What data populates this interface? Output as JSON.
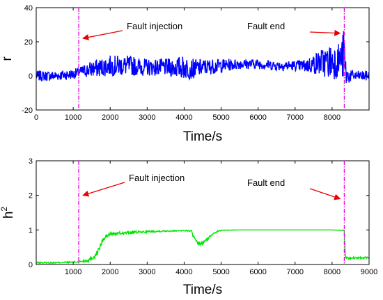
{
  "chart_data": [
    {
      "type": "line",
      "title": "",
      "xlabel": "Time/s",
      "ylabel": "r",
      "xlim": [
        0,
        9000
      ],
      "ylim": [
        -20,
        40
      ],
      "xticks": [
        0,
        1000,
        2000,
        3000,
        4000,
        5000,
        6000,
        7000,
        8000
      ],
      "yticks": [
        -20,
        0,
        20,
        40
      ],
      "grid": false,
      "series": [
        {
          "color": "#0000ff",
          "x": [
            0,
            500,
            1000,
            1150,
            1500,
            2000,
            2500,
            3000,
            3500,
            4000,
            4200,
            4500,
            5000,
            5500,
            6000,
            6500,
            7000,
            7300,
            7500,
            7700,
            7900,
            8100,
            8250,
            8330,
            8360,
            8400,
            8600,
            8800,
            9000
          ],
          "values": [
            0,
            0,
            1,
            2,
            4,
            6,
            6,
            5,
            5,
            5,
            4,
            5,
            6,
            7,
            7,
            6,
            6,
            6,
            7,
            8,
            8,
            9,
            10,
            12,
            2,
            0,
            0,
            0,
            0
          ],
          "amplitude": [
            3,
            3,
            3,
            3,
            5,
            6,
            6,
            5,
            5,
            7,
            6,
            5,
            4,
            3,
            3,
            3,
            3,
            4,
            6,
            8,
            10,
            11,
            10,
            18,
            12,
            5,
            3,
            3,
            3
          ]
        }
      ],
      "vlines": [
        {
          "x": 1150,
          "color": "#e600e6"
        },
        {
          "x": 8330,
          "color": "#e600e6"
        }
      ],
      "annotations": [
        {
          "text": "Fault injection",
          "arrow_to": [
            1150,
            22
          ],
          "color": "#e60000"
        },
        {
          "text": "Fault end",
          "arrow_to": [
            8330,
            25
          ],
          "color": "#e60000"
        }
      ]
    },
    {
      "type": "line",
      "title": "",
      "xlabel": "Time/s",
      "ylabel": "h",
      "ylabel_superscript": "2",
      "xlim": [
        0,
        9000
      ],
      "ylim": [
        0,
        3
      ],
      "xticks": [
        1000,
        2000,
        3000,
        4000,
        5000,
        6000,
        7000,
        8000,
        9000
      ],
      "yticks": [
        0,
        1,
        2,
        3
      ],
      "grid": false,
      "series": [
        {
          "color": "#00e600",
          "x": [
            0,
            500,
            1000,
            1150,
            1400,
            1600,
            1700,
            1800,
            1900,
            2000,
            2500,
            3000,
            3500,
            4000,
            4200,
            4250,
            4350,
            4500,
            4650,
            4800,
            5000,
            5500,
            6000,
            6500,
            7000,
            7500,
            8000,
            8300,
            8330,
            8360,
            8500,
            9000
          ],
          "values": [
            0.05,
            0.05,
            0.07,
            0.08,
            0.12,
            0.25,
            0.45,
            0.7,
            0.82,
            0.88,
            0.92,
            0.95,
            0.97,
            0.98,
            0.97,
            0.8,
            0.6,
            0.62,
            0.75,
            0.92,
            0.99,
            1.0,
            1.0,
            1.0,
            1.0,
            1.0,
            1.0,
            0.99,
            0.98,
            0.2,
            0.18,
            0.2
          ],
          "amplitude": [
            0.02,
            0.02,
            0.02,
            0.03,
            0.05,
            0.08,
            0.08,
            0.07,
            0.06,
            0.05,
            0.04,
            0.03,
            0.02,
            0.01,
            0.02,
            0.06,
            0.07,
            0.06,
            0.05,
            0.03,
            0.01,
            0.0,
            0.0,
            0.0,
            0.0,
            0.0,
            0.0,
            0.01,
            0.01,
            0.03,
            0.03,
            0.03
          ]
        }
      ],
      "vlines": [
        {
          "x": 1150,
          "color": "#e600e6"
        },
        {
          "x": 8330,
          "color": "#e600e6"
        }
      ],
      "annotations": [
        {
          "text": "Fault injection",
          "arrow_to": [
            1150,
            2.0
          ],
          "color": "#e60000"
        },
        {
          "text": "Fault end",
          "arrow_to": [
            8330,
            1.9
          ],
          "color": "#e60000"
        }
      ]
    }
  ]
}
